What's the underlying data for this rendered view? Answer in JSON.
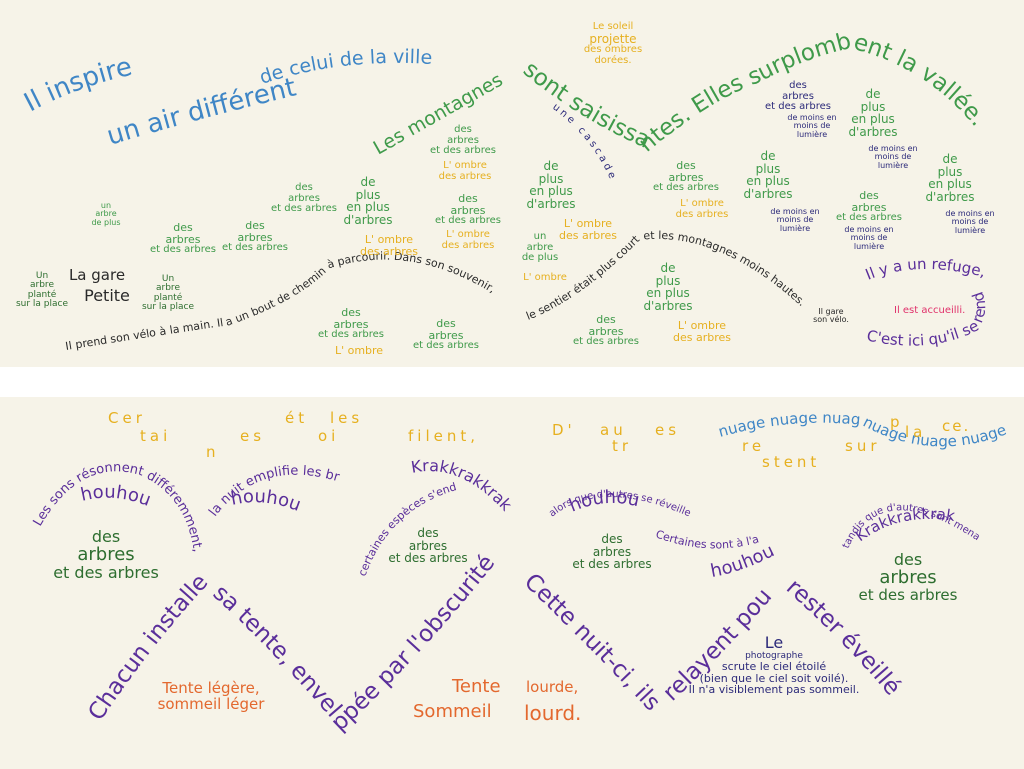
{
  "top": {
    "inspire1": "Il inspire",
    "inspire2": "un air différent",
    "celui": "de celui de la ville.",
    "montagnes": "Les montagnes",
    "soleil": [
      "Le soleil",
      "projette",
      "des ombres",
      "dorées."
    ],
    "sont": "sont saisissantes. Elles surplombent la vallée.",
    "cascade": "une cascade",
    "gare": "La gare",
    "petite": "Petite",
    "arbre_plante": [
      "Un",
      "arbre",
      "planté",
      "sur la place"
    ],
    "arbre_plante2": [
      "Un",
      "arbre",
      "planté",
      "sur la place"
    ],
    "un_arbre": [
      "un",
      "arbre",
      "de plus"
    ],
    "un_arbre2": [
      "un",
      "arbre",
      "de plus"
    ],
    "arbres": [
      "des",
      "arbres",
      "et des arbres"
    ],
    "plus_arbres": [
      "de",
      "plus",
      "en plus",
      "d'arbres"
    ],
    "ombre": "L' ombre",
    "ombre_full": [
      "L' ombre",
      "des arbres"
    ],
    "lumiere": [
      "de moins en",
      "moins de",
      "lumière"
    ],
    "velo": "Il prend son vélo à la main. Il a un bout de chemin à parcourir. Dans son souvenir,",
    "sentier": "le sentier était plus court et les montagnes moins hautes.",
    "ilgare": [
      "Il gare",
      "son vélo."
    ],
    "refuge1": "Il y a un refuge,",
    "accueilli": "Il est accueilli.",
    "refuge2": "C'est ici qu'il se rend."
  },
  "bottom": {
    "certaines_top": [
      "Cer",
      "ét",
      "les"
    ],
    "certaines_mid": [
      "tai",
      "es",
      "oi",
      "filent,"
    ],
    "certaines_low": [
      "n"
    ],
    "dautres_top": [
      "D'",
      "au",
      "es"
    ],
    "dautres_mid": [
      "tr",
      "re",
      "stent",
      "sur"
    ],
    "nuage1": "nuage nuage nuage",
    "nuage2": "nuage nuage nuage",
    "place": [
      "p",
      "la",
      "ce."
    ],
    "sons": "Les sons résonnent différemment,",
    "houhou": "houhou",
    "nuit": "la nuit emplifie les bruits.",
    "krak": "Krakkrakkrak",
    "especes": "certaines espèces s'endorment",
    "alors": "alors que d'autres se réveillent",
    "abris": "Certaines sont à l'abris",
    "tandis": "tandis que d'autres sont menacées.",
    "arbres_big": [
      "des",
      "arbres",
      "et des arbres"
    ],
    "arbres_small": [
      "des",
      "arbres",
      "et des arbres"
    ],
    "chacun": "Chacun installe",
    "tente": "sa tente, envelo",
    "obscurite": "ppée par l'obscurité.",
    "cette": "Cette nuit-ci, ils se",
    "relayent": "relayent pour",
    "eveilles": "rester éveillés.",
    "legere": [
      "Tente légère,",
      "sommeil léger"
    ],
    "lourde": [
      "Tente",
      "lourde,",
      "Sommeil",
      "lourd."
    ],
    "photographe": [
      "Le",
      "photographe",
      "scrute le ciel étoilé",
      "(bien que le ciel soit voilé).",
      "Il n'a visiblement pas sommeil."
    ]
  },
  "colors": {
    "blue": "#3f86c6",
    "green": "#3f9a4a",
    "yellow": "#e6b020",
    "purple": "#5a2e9a",
    "navy": "#2c2a7a",
    "orange": "#e3682e",
    "pink": "#e0306a",
    "background": "#f6f3e8"
  }
}
